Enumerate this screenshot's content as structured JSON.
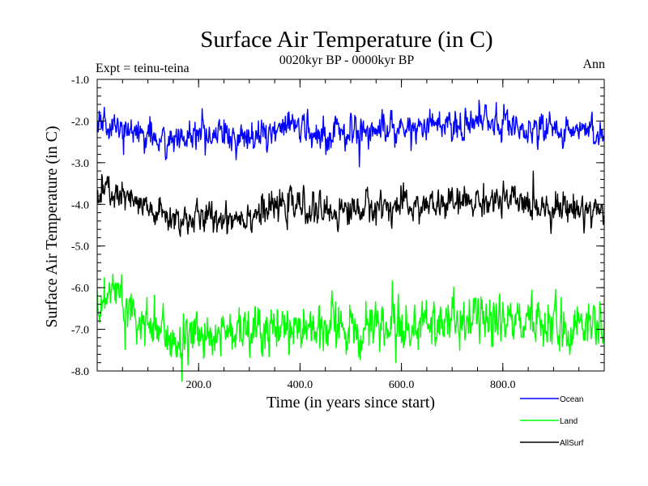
{
  "chart_data": {
    "type": "line",
    "title": "Surface Air Temperature (in C)",
    "subtitle": "0020kyr BP - 0000kyr BP",
    "left_note": "Expt = teinu-teina",
    "right_note": "Ann",
    "xlabel": "Time (in years since start)",
    "ylabel": "Surface Air Temperature (in C)",
    "xlim": [
      0,
      1000
    ],
    "ylim": [
      -8.0,
      -1.0
    ],
    "x_ticks": [
      200,
      400,
      600,
      800
    ],
    "x_tick_labels": [
      "200.0",
      "400.0",
      "600.0",
      "800.0"
    ],
    "y_ticks": [
      -1,
      -2,
      -3,
      -4,
      -5,
      -6,
      -7,
      -8
    ],
    "y_tick_labels": [
      "-1.0",
      "-2.0",
      "-3.0",
      "-4.0",
      "-5.0",
      "-6.0",
      "-7.0",
      "-8.0"
    ],
    "noise_seed": 7,
    "series": [
      {
        "name": "Ocean",
        "color": "#0000ff",
        "noise": 0.17,
        "x": [
          0,
          20,
          50,
          100,
          150,
          200,
          300,
          380,
          450,
          550,
          650,
          770,
          900,
          1000
        ],
        "values": [
          -2.2,
          -2.05,
          -2.15,
          -2.35,
          -2.45,
          -2.4,
          -2.35,
          -2.15,
          -2.3,
          -2.15,
          -2.15,
          -2.05,
          -2.2,
          -2.3
        ]
      },
      {
        "name": "Land",
        "color": "#00ff00",
        "noise": 0.27,
        "x": [
          0,
          15,
          30,
          60,
          100,
          130,
          160,
          200,
          250,
          300,
          380,
          450,
          550,
          650,
          770,
          900,
          1000
        ],
        "values": [
          -6.5,
          -6.2,
          -5.9,
          -6.4,
          -6.9,
          -7.2,
          -7.2,
          -7.1,
          -7.1,
          -7.0,
          -6.9,
          -7.0,
          -6.95,
          -6.9,
          -6.8,
          -6.85,
          -7.0
        ]
      },
      {
        "name": "AllSurf",
        "color": "#000000",
        "noise": 0.17,
        "x": [
          0,
          20,
          50,
          100,
          150,
          200,
          300,
          380,
          450,
          550,
          650,
          770,
          900,
          1000
        ],
        "values": [
          -3.9,
          -3.65,
          -3.85,
          -4.15,
          -4.35,
          -4.35,
          -4.25,
          -4.0,
          -4.2,
          -4.05,
          -4.05,
          -3.9,
          -4.05,
          -4.15
        ]
      }
    ]
  }
}
